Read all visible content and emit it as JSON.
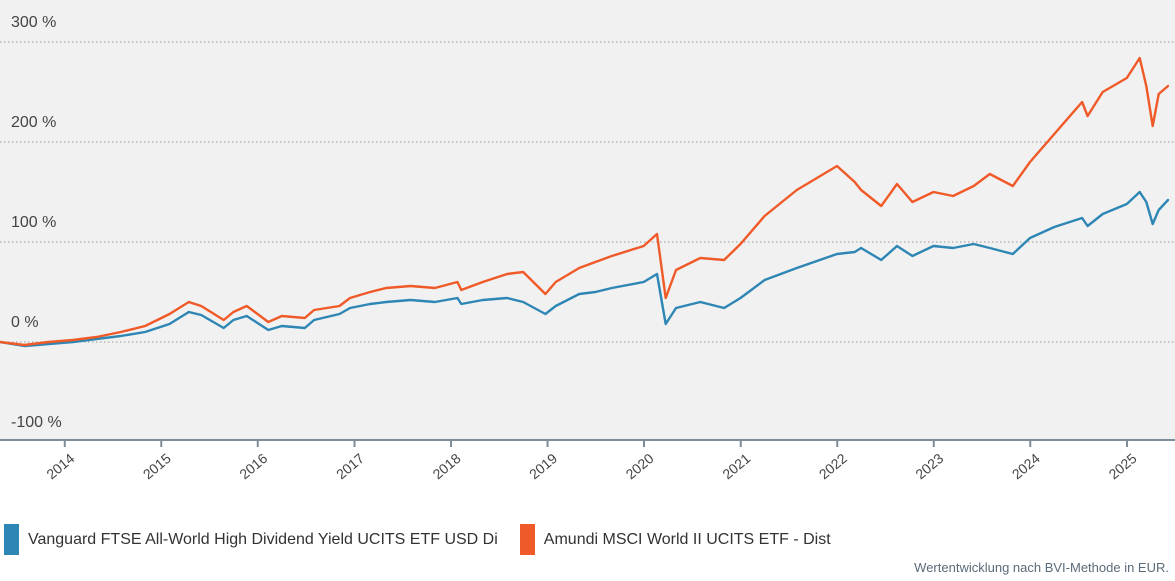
{
  "chart_data": {
    "type": "line",
    "title": "",
    "xlabel": "",
    "ylabel": "",
    "y_unit": "%",
    "ylim": [
      -100,
      300
    ],
    "y_ticks": [
      -100,
      0,
      100,
      200,
      300
    ],
    "y_tick_labels": [
      "-100 %",
      "0 %",
      "100 %",
      "200 %",
      "300 %"
    ],
    "xlim": [
      "2013-05-01",
      "2025-06-05"
    ],
    "x_ticks": [
      "2014-01-01",
      "2015-01-01",
      "2016-01-01",
      "2017-01-01",
      "2018-01-01",
      "2019-01-01",
      "2020-01-01",
      "2021-01-01",
      "2022-01-01",
      "2023-01-01",
      "2024-01-01",
      "2025-01-01"
    ],
    "x_tick_labels": [
      "2014",
      "2015",
      "2016",
      "2017",
      "2018",
      "2019",
      "2020",
      "2021",
      "2022",
      "2023",
      "2024",
      "2025"
    ],
    "grid": true,
    "legend_position": "bottom-left",
    "x": [
      "2013-05-01",
      "2013-08-01",
      "2013-11-01",
      "2014-02-01",
      "2014-05-01",
      "2014-08-01",
      "2014-11-01",
      "2015-02-01",
      "2015-04-15",
      "2015-06-01",
      "2015-08-25",
      "2015-10-01",
      "2015-11-20",
      "2016-02-10",
      "2016-04-01",
      "2016-06-27",
      "2016-08-01",
      "2016-11-05",
      "2016-12-15",
      "2017-03-01",
      "2017-05-01",
      "2017-08-01",
      "2017-11-01",
      "2018-01-25",
      "2018-02-09",
      "2018-05-01",
      "2018-08-01",
      "2018-10-01",
      "2018-12-24",
      "2019-02-01",
      "2019-05-01",
      "2019-07-01",
      "2019-09-01",
      "2019-12-31",
      "2020-02-19",
      "2020-03-23",
      "2020-05-01",
      "2020-08-01",
      "2020-10-30",
      "2020-12-31",
      "2021-04-01",
      "2021-08-01",
      "2021-12-31",
      "2022-03-08",
      "2022-04-01",
      "2022-06-16",
      "2022-08-15",
      "2022-10-12",
      "2022-12-31",
      "2023-03-15",
      "2023-06-01",
      "2023-08-01",
      "2023-10-27",
      "2023-12-31",
      "2024-04-01",
      "2024-07-15",
      "2024-08-05",
      "2024-10-01",
      "2024-12-31",
      "2025-02-18",
      "2025-03-15",
      "2025-04-08",
      "2025-05-01",
      "2025-06-05"
    ],
    "series": [
      {
        "name": "Vanguard FTSE All-World High Dividend Yield UCITS ETF USD Di",
        "color": "#2e86b5",
        "values": [
          0,
          -4,
          -2,
          0,
          3,
          6,
          10,
          18,
          30,
          27,
          14,
          22,
          26,
          12,
          16,
          14,
          22,
          28,
          34,
          38,
          40,
          42,
          40,
          44,
          38,
          42,
          44,
          40,
          28,
          36,
          48,
          50,
          54,
          60,
          68,
          18,
          34,
          40,
          34,
          44,
          62,
          74,
          88,
          90,
          94,
          82,
          96,
          86,
          96,
          94,
          98,
          94,
          88,
          104,
          115,
          124,
          116,
          128,
          138,
          150,
          140,
          118,
          132,
          142
        ]
      },
      {
        "name": "Amundi MSCI World II UCITS ETF - Dist",
        "color": "#f05a28",
        "values": [
          0,
          -3,
          0,
          2,
          5,
          10,
          16,
          28,
          40,
          36,
          22,
          30,
          36,
          20,
          26,
          24,
          32,
          36,
          44,
          50,
          54,
          56,
          54,
          60,
          52,
          60,
          68,
          70,
          48,
          60,
          74,
          80,
          86,
          96,
          108,
          44,
          72,
          84,
          82,
          98,
          126,
          152,
          176,
          160,
          152,
          136,
          158,
          140,
          150,
          146,
          156,
          168,
          156,
          180,
          208,
          240,
          226,
          250,
          264,
          284,
          256,
          216,
          248,
          256
        ]
      }
    ]
  },
  "legend": {
    "items": [
      {
        "label": "Vanguard FTSE All-World High Dividend Yield UCITS ETF USD Di",
        "color": "#2e86b5"
      },
      {
        "label": "Amundi MSCI World II UCITS ETF - Dist",
        "color": "#f05a28"
      }
    ]
  },
  "footnote": "Wertentwicklung nach BVI-Methode in EUR.",
  "colors": {
    "plot_background": "#f1f1f1",
    "grid": "#9a9a9a",
    "axis": "#7f8c96",
    "text": "#444444"
  }
}
